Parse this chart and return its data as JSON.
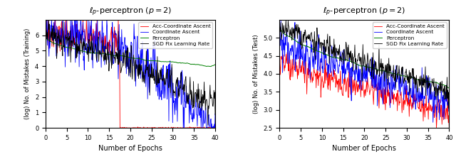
{
  "title_left": "$\\ell_p$-perceptron ($p = 2$)",
  "title_right": "$\\ell_p$-perceptron ($p = 2$)",
  "xlabel": "Number of Epochs",
  "ylabel_left": "(log) No. of Mistakes (Training)",
  "ylabel_right": "(log) No. of Mistakes (Test)",
  "xlim": [
    0,
    40
  ],
  "ylim_left": [
    0,
    7
  ],
  "ylim_right": [
    2.5,
    5.5
  ],
  "xticks": [
    0,
    5,
    10,
    15,
    20,
    25,
    30,
    35,
    40
  ],
  "yticks_left": [
    0,
    1,
    2,
    3,
    4,
    5,
    6
  ],
  "yticks_right": [
    2.5,
    3.0,
    3.5,
    4.0,
    4.5,
    5.0
  ],
  "legend_labels": [
    "Acc-Coordinate Ascent",
    "Coordinate Ascent",
    "Perceptron",
    "SGD Fix Learning Rate"
  ],
  "colors": [
    "red",
    "blue",
    "green",
    "black"
  ],
  "seed": 7
}
